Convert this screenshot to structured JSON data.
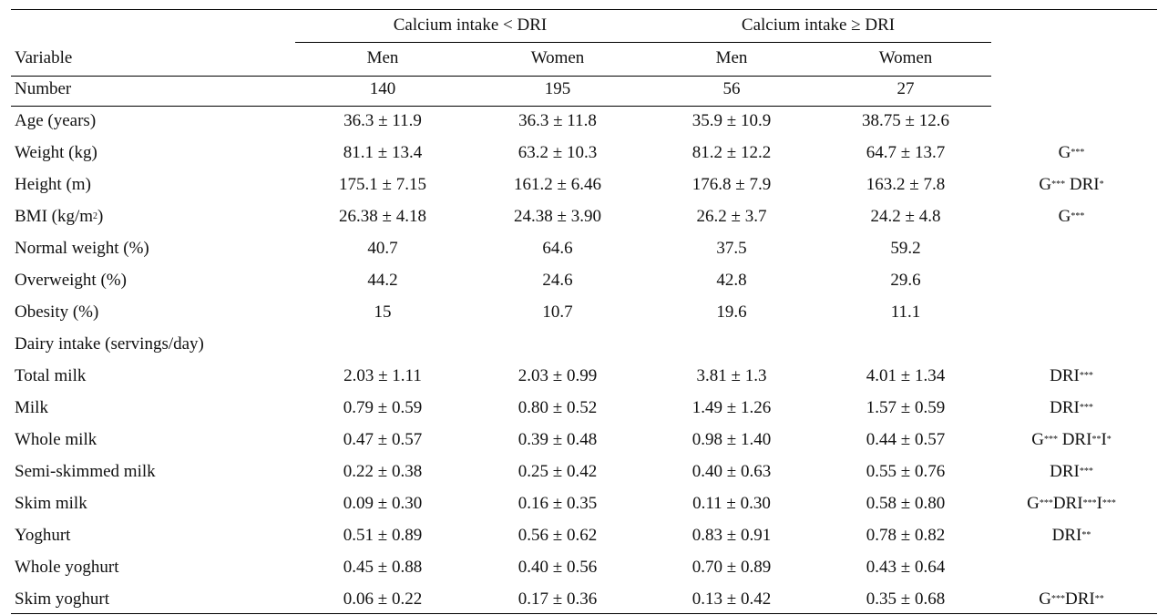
{
  "header": {
    "group_left": "Calcium intake < DRI",
    "group_right": "Calcium intake ≥ DRI",
    "variable": "Variable",
    "men1": "Men",
    "women1": "Women",
    "men2": "Men",
    "women2": "Women"
  },
  "rows": [
    {
      "label": "Number",
      "men_lt": "140",
      "women_lt": "195",
      "men_ge": "56",
      "women_ge": "27",
      "sig": []
    },
    {
      "label": "Age (years)",
      "men_lt": "36.3 ± 11.9",
      "women_lt": "36.3 ± 11.8",
      "men_ge": "35.9 ± 10.9",
      "women_ge": "38.75 ± 12.6",
      "sig": []
    },
    {
      "label": "Weight (kg)",
      "men_lt": "81.1 ± 13.4",
      "women_lt": "63.2 ± 10.3",
      "men_ge": "81.2 ± 12.2",
      "women_ge": "64.7 ± 13.7",
      "sig": [
        [
          "G",
          "***"
        ]
      ]
    },
    {
      "label": "Height (m)",
      "men_lt": "175.1 ± 7.15",
      "women_lt": "161.2 ± 6.46",
      "men_ge": "176.8 ± 7.9",
      "women_ge": "163.2 ± 7.8",
      "sig": [
        [
          "G",
          "***"
        ],
        [
          " DRI",
          "*"
        ]
      ]
    },
    {
      "label": "BMI (kg/m",
      "label_sup": "2",
      "label_after": ")",
      "men_lt": "26.38 ± 4.18",
      "women_lt": "24.38 ± 3.90",
      "men_ge": "26.2 ± 3.7",
      "women_ge": "24.2 ± 4.8",
      "sig": [
        [
          "G",
          "***"
        ]
      ]
    },
    {
      "label": "Normal weight (%)",
      "men_lt": "40.7",
      "women_lt": "64.6",
      "men_ge": "37.5",
      "women_ge": "59.2",
      "sig": []
    },
    {
      "label": "Overweight (%)",
      "men_lt": "44.2",
      "women_lt": "24.6",
      "men_ge": "42.8",
      "women_ge": "29.6",
      "sig": []
    },
    {
      "label": "Obesity (%)",
      "men_lt": "15",
      "women_lt": "10.7",
      "men_ge": "19.6",
      "women_ge": "11.1",
      "sig": []
    },
    {
      "label": "Dairy intake (servings/day)",
      "men_lt": "",
      "women_lt": "",
      "men_ge": "",
      "women_ge": "",
      "sig": []
    },
    {
      "label": "Total milk",
      "men_lt": "2.03 ± 1.11",
      "women_lt": "2.03 ± 0.99",
      "men_ge": "3.81 ± 1.3",
      "women_ge": "4.01 ± 1.34",
      "sig": [
        [
          "DRI",
          "***"
        ]
      ]
    },
    {
      "label": "Milk",
      "men_lt": "0.79 ± 0.59",
      "women_lt": "0.80 ± 0.52",
      "men_ge": "1.49 ± 1.26",
      "women_ge": "1.57 ± 0.59",
      "sig": [
        [
          "DRI",
          "***"
        ]
      ]
    },
    {
      "label": "Whole milk",
      "men_lt": "0.47 ± 0.57",
      "women_lt": "0.39 ± 0.48",
      "men_ge": "0.98 ± 1.40",
      "women_ge": "0.44 ± 0.57",
      "sig": [
        [
          "G",
          "***"
        ],
        [
          " DRI",
          "**"
        ],
        [
          "I",
          "*"
        ]
      ]
    },
    {
      "label": "Semi-skimmed milk",
      "men_lt": "0.22 ± 0.38",
      "women_lt": "0.25 ± 0.42",
      "men_ge": "0.40 ± 0.63",
      "women_ge": "0.55 ± 0.76",
      "sig": [
        [
          "DRI",
          "***"
        ]
      ]
    },
    {
      "label": "Skim milk",
      "men_lt": "0.09 ± 0.30",
      "women_lt": "0.16 ± 0.35",
      "men_ge": "0.11 ± 0.30",
      "women_ge": "0.58 ± 0.80",
      "sig": [
        [
          "G",
          "***"
        ],
        [
          "DRI",
          "***"
        ],
        [
          "I",
          "***"
        ]
      ]
    },
    {
      "label": "Yoghurt",
      "men_lt": "0.51 ± 0.89",
      "women_lt": "0.56 ± 0.62",
      "men_ge": "0.83 ± 0.91",
      "women_ge": "0.78 ± 0.82",
      "sig": [
        [
          "DRI",
          "**"
        ]
      ]
    },
    {
      "label": "Whole yoghurt",
      "men_lt": "0.45 ± 0.88",
      "women_lt": "0.40 ± 0.56",
      "men_ge": "0.70 ± 0.89",
      "women_ge": "0.43 ± 0.64",
      "sig": []
    },
    {
      "label": "Skim yoghurt",
      "men_lt": "0.06 ± 0.22",
      "women_lt": "0.17 ± 0.36",
      "men_ge": "0.13 ± 0.42",
      "women_ge": "0.35 ± 0.68",
      "sig": [
        [
          "G",
          "***"
        ],
        [
          "DRI",
          "**"
        ]
      ]
    }
  ]
}
